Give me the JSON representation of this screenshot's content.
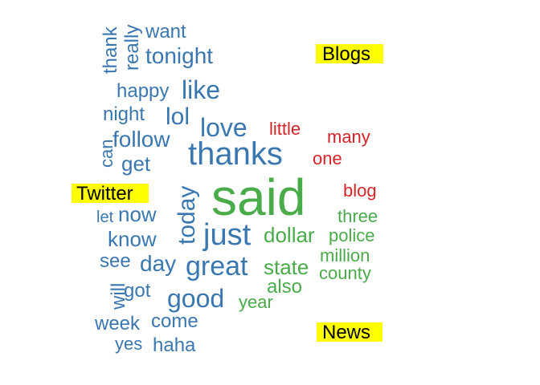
{
  "chart_data": {
    "type": "wordcloud",
    "groups": [
      {
        "name": "Twitter",
        "color": "#3a77b1"
      },
      {
        "name": "Blogs",
        "color": "#d52427"
      },
      {
        "name": "News",
        "color": "#4aab4a"
      }
    ],
    "words": [
      {
        "text": "said",
        "group": "News"
      },
      {
        "text": "thanks",
        "group": "Twitter"
      },
      {
        "text": "just",
        "group": "Twitter"
      },
      {
        "text": "great",
        "group": "Twitter"
      },
      {
        "text": "love",
        "group": "Twitter"
      },
      {
        "text": "like",
        "group": "Twitter"
      },
      {
        "text": "good",
        "group": "Twitter"
      },
      {
        "text": "today",
        "group": "Twitter"
      },
      {
        "text": "tonight",
        "group": "Twitter"
      },
      {
        "text": "lol",
        "group": "Twitter"
      },
      {
        "text": "follow",
        "group": "Twitter"
      },
      {
        "text": "day",
        "group": "Twitter"
      },
      {
        "text": "dollar",
        "group": "News"
      },
      {
        "text": "happy",
        "group": "Twitter"
      },
      {
        "text": "want",
        "group": "Twitter"
      },
      {
        "text": "get",
        "group": "Twitter"
      },
      {
        "text": "now",
        "group": "Twitter"
      },
      {
        "text": "know",
        "group": "Twitter"
      },
      {
        "text": "night",
        "group": "Twitter"
      },
      {
        "text": "really",
        "group": "Twitter"
      },
      {
        "text": "thank",
        "group": "Twitter"
      },
      {
        "text": "come",
        "group": "Twitter"
      },
      {
        "text": "haha",
        "group": "Twitter"
      },
      {
        "text": "see",
        "group": "Twitter"
      },
      {
        "text": "got",
        "group": "Twitter"
      },
      {
        "text": "week",
        "group": "Twitter"
      },
      {
        "text": "will",
        "group": "Twitter"
      },
      {
        "text": "can",
        "group": "Twitter"
      },
      {
        "text": "yes",
        "group": "Twitter"
      },
      {
        "text": "let",
        "group": "Twitter"
      },
      {
        "text": "state",
        "group": "News"
      },
      {
        "text": "also",
        "group": "News"
      },
      {
        "text": "police",
        "group": "News"
      },
      {
        "text": "three",
        "group": "News"
      },
      {
        "text": "million",
        "group": "News"
      },
      {
        "text": "county",
        "group": "News"
      },
      {
        "text": "year",
        "group": "News"
      },
      {
        "text": "little",
        "group": "Blogs"
      },
      {
        "text": "many",
        "group": "Blogs"
      },
      {
        "text": "one",
        "group": "Blogs"
      },
      {
        "text": "blog",
        "group": "Blogs"
      }
    ]
  }
}
